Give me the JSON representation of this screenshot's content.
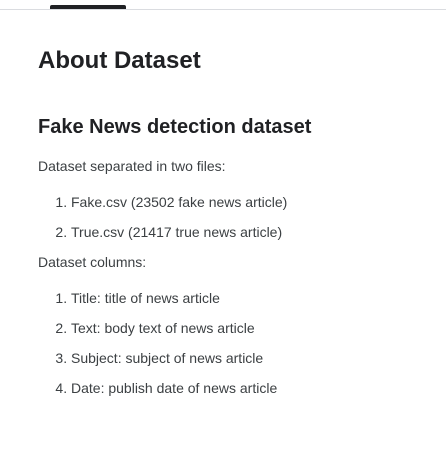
{
  "page": {
    "title": "About Dataset"
  },
  "section": {
    "heading": "Fake News detection dataset",
    "files_intro": "Dataset separated in two files:",
    "files": [
      "Fake.csv (23502 fake news article)",
      "True.csv (21417 true news article)"
    ],
    "columns_intro": "Dataset columns:",
    "columns": [
      "Title: title of news article",
      "Text: body text of news article",
      "Subject: subject of news article",
      "Date: publish date of news article"
    ]
  }
}
